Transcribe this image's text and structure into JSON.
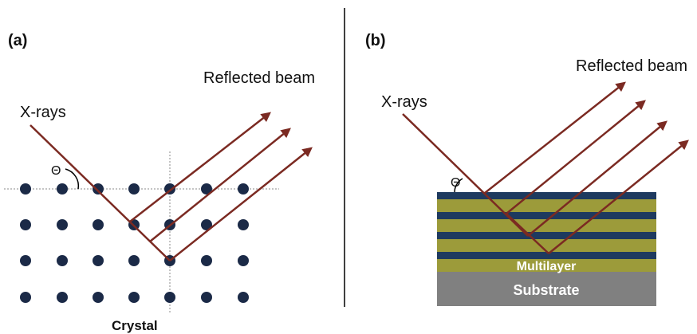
{
  "panel_a": {
    "label": "(a)",
    "reflected_label": "Reflected beam",
    "incident_label": "X-rays",
    "angle_label": "Θ",
    "caption": "Crystal"
  },
  "panel_b": {
    "label": "(b)",
    "reflected_label": "Reflected beam",
    "incident_label": "X-rays",
    "angle_label": "Θ",
    "multilayer_label": "Multilayer",
    "substrate_label": "Substrate"
  }
}
